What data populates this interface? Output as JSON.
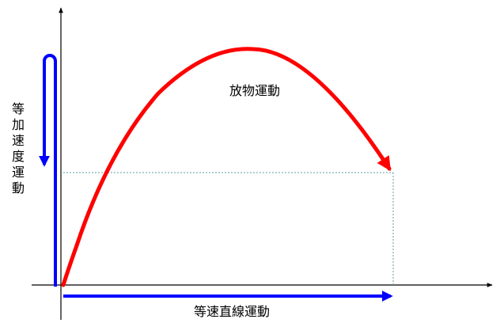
{
  "labels": {
    "parabolic_motion": "放物運動",
    "uniform_linear_motion": "等速直線運動",
    "uniformly_accelerated_motion": "等加速度運動"
  },
  "colors": {
    "trajectory": "#ff0000",
    "component_arrows": "#0000ff",
    "axes": "#000000",
    "guide_lines": "#5f9ea0"
  }
}
